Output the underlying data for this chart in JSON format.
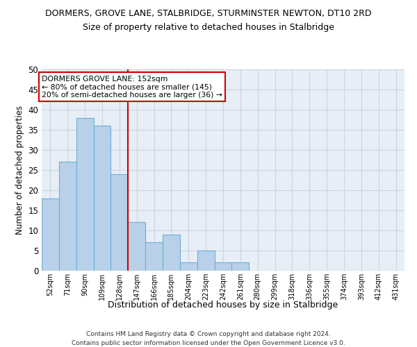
{
  "title": "DORMERS, GROVE LANE, STALBRIDGE, STURMINSTER NEWTON, DT10 2RD",
  "subtitle": "Size of property relative to detached houses in Stalbridge",
  "xlabel": "Distribution of detached houses by size in Stalbridge",
  "ylabel": "Number of detached properties",
  "categories": [
    "52sqm",
    "71sqm",
    "90sqm",
    "109sqm",
    "128sqm",
    "147sqm",
    "166sqm",
    "185sqm",
    "204sqm",
    "223sqm",
    "242sqm",
    "261sqm",
    "280sqm",
    "299sqm",
    "318sqm",
    "336sqm",
    "355sqm",
    "374sqm",
    "393sqm",
    "412sqm",
    "431sqm"
  ],
  "values": [
    18,
    27,
    38,
    36,
    24,
    12,
    7,
    9,
    2,
    5,
    2,
    2,
    0,
    0,
    0,
    0,
    0,
    0,
    0,
    0,
    0
  ],
  "bar_color": "#b8d0e8",
  "bar_edge_color": "#6baed6",
  "grid_color": "#c8d4e4",
  "background_color": "#e8eef6",
  "vline_x": 4.5,
  "vline_color": "#cc0000",
  "annotation_text": "DORMERS GROVE LANE: 152sqm\n← 80% of detached houses are smaller (145)\n20% of semi-detached houses are larger (36) →",
  "annotation_box_color": "#ffffff",
  "annotation_box_edge": "#cc0000",
  "ylim": [
    0,
    50
  ],
  "yticks": [
    0,
    5,
    10,
    15,
    20,
    25,
    30,
    35,
    40,
    45,
    50
  ],
  "footer1": "Contains HM Land Registry data © Crown copyright and database right 2024.",
  "footer2": "Contains public sector information licensed under the Open Government Licence v3.0."
}
